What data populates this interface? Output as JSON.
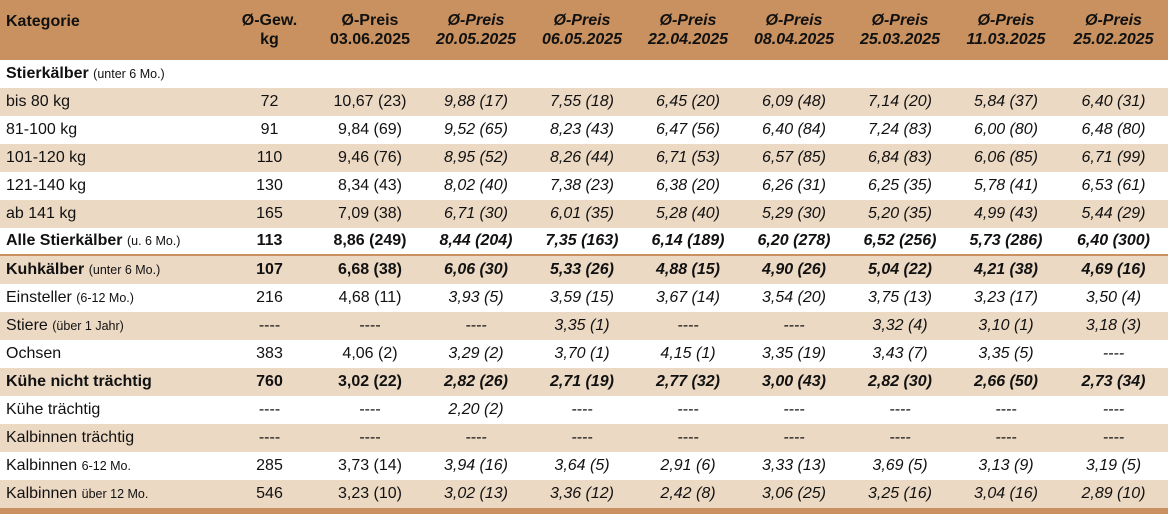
{
  "header": {
    "category": "Kategorie",
    "weight_line1": "Ø-Gew.",
    "weight_line2": "kg",
    "price_label": "Ø-Preis",
    "dates": [
      "03.06.2025",
      "20.05.2025",
      "06.05.2025",
      "22.04.2025",
      "08.04.2025",
      "25.03.2025",
      "11.03.2025",
      "25.02.2025"
    ]
  },
  "section_stier": {
    "label": "Stierkälber",
    "sub": "(unter 6 Mo.)"
  },
  "rows": [
    {
      "name": "bis 80 kg",
      "sub": "",
      "weight": "72",
      "prices": [
        "10,67 (23)",
        "9,88 (17)",
        "7,55 (18)",
        "6,45 (20)",
        "6,09 (48)",
        "7,14 (20)",
        "5,84 (37)",
        "6,40 (31)"
      ]
    },
    {
      "name": "81-100 kg",
      "sub": "",
      "weight": "91",
      "prices": [
        "9,84 (69)",
        "9,52 (65)",
        "8,23 (43)",
        "6,47 (56)",
        "6,40 (84)",
        "7,24 (83)",
        "6,00 (80)",
        "6,48 (80)"
      ]
    },
    {
      "name": "101-120 kg",
      "sub": "",
      "weight": "110",
      "prices": [
        "9,46 (76)",
        "8,95 (52)",
        "8,26 (44)",
        "6,71 (53)",
        "6,57 (85)",
        "6,84 (83)",
        "6,06 (85)",
        "6,71 (99)"
      ]
    },
    {
      "name": "121-140 kg",
      "sub": "",
      "weight": "130",
      "prices": [
        "8,34 (43)",
        "8,02 (40)",
        "7,38 (23)",
        "6,38 (20)",
        "6,26 (31)",
        "6,25 (35)",
        "5,78 (41)",
        "6,53 (61)"
      ]
    },
    {
      "name": "ab 141 kg",
      "sub": "",
      "weight": "165",
      "prices": [
        "7,09 (38)",
        "6,71 (30)",
        "6,01 (35)",
        "5,28 (40)",
        "5,29 (30)",
        "5,20 (35)",
        "4,99 (43)",
        "5,44 (29)"
      ]
    },
    {
      "name": "Alle Stierkälber",
      "sub": "(u. 6 Mo.)",
      "weight": "113",
      "prices": [
        "8,86 (249)",
        "8,44 (204)",
        "7,35 (163)",
        "6,14 (189)",
        "6,20 (278)",
        "6,52 (256)",
        "5,73 (286)",
        "6,40 (300)"
      ]
    },
    {
      "name": "Kuhkälber",
      "sub": "(unter 6 Mo.)",
      "weight": "107",
      "prices": [
        "6,68 (38)",
        "6,06 (30)",
        "5,33 (26)",
        "4,88 (15)",
        "4,90 (26)",
        "5,04 (22)",
        "4,21 (38)",
        "4,69 (16)"
      ]
    },
    {
      "name": "Einsteller",
      "sub": "(6-12 Mo.)",
      "weight": "216",
      "prices": [
        "4,68 (11)",
        "3,93 (5)",
        "3,59 (15)",
        "3,67 (14)",
        "3,54 (20)",
        "3,75 (13)",
        "3,23 (17)",
        "3,50 (4)"
      ]
    },
    {
      "name": "Stiere",
      "sub": "(über 1 Jahr)",
      "weight": "----",
      "prices": [
        "----",
        "----",
        "3,35 (1)",
        "----",
        "----",
        "3,32 (4)",
        "3,10 (1)",
        "3,18 (3)"
      ]
    },
    {
      "name": "Ochsen",
      "sub": "",
      "weight": "383",
      "prices": [
        "4,06 (2)",
        "3,29 (2)",
        "3,70 (1)",
        "4,15 (1)",
        "3,35 (19)",
        "3,43 (7)",
        "3,35 (5)",
        "----"
      ]
    },
    {
      "name": "Kühe nicht trächtig",
      "sub": "",
      "weight": "760",
      "prices": [
        "3,02 (22)",
        "2,82 (26)",
        "2,71 (19)",
        "2,77 (32)",
        "3,00 (43)",
        "2,82 (30)",
        "2,66 (50)",
        "2,73 (34)"
      ]
    },
    {
      "name": "Kühe trächtig",
      "sub": "",
      "weight": "----",
      "prices": [
        "----",
        "2,20 (2)",
        "----",
        "----",
        "----",
        "----",
        "----",
        "----"
      ]
    },
    {
      "name": "Kalbinnen trächtig",
      "sub": "",
      "weight": "----",
      "prices": [
        "----",
        "----",
        "----",
        "----",
        "----",
        "----",
        "----",
        "----"
      ]
    },
    {
      "name": "Kalbinnen",
      "sub": "6-12 Mo.",
      "weight": "285",
      "prices": [
        "3,73 (14)",
        "3,94 (16)",
        "3,64 (5)",
        "2,91 (6)",
        "3,33 (13)",
        "3,69 (5)",
        "3,13 (9)",
        "3,19 (5)"
      ]
    },
    {
      "name": "Kalbinnen",
      "sub": "über 12 Mo.",
      "weight": "546",
      "prices": [
        "3,23 (10)",
        "3,02 (13)",
        "3,36 (12)",
        "2,42 (8)",
        "3,06 (25)",
        "3,25 (16)",
        "3,04 (16)",
        "2,89 (10)"
      ]
    }
  ]
}
